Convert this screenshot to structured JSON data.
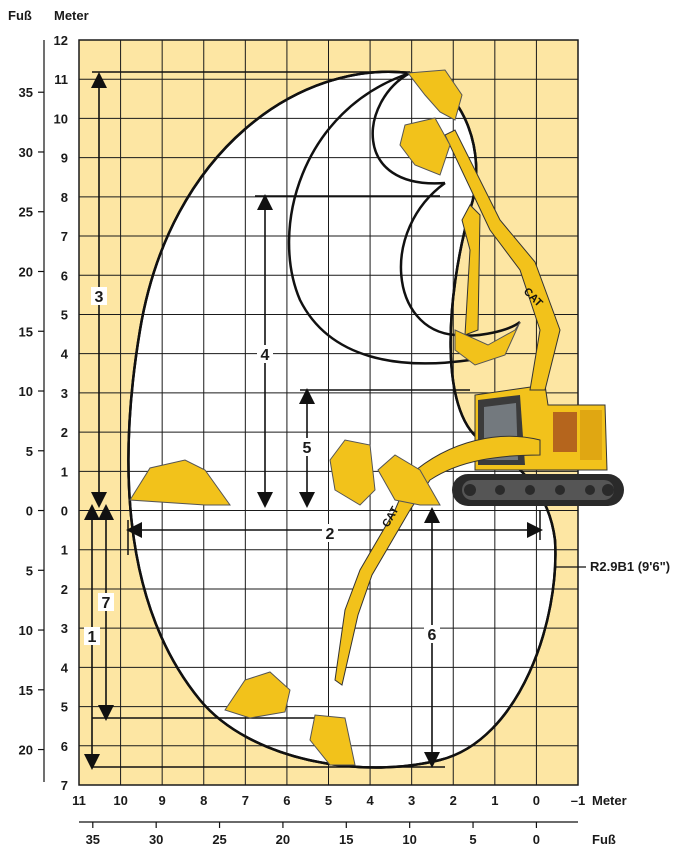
{
  "header": {
    "feet_unit": "Fuß",
    "meter_unit": "Meter"
  },
  "axes": {
    "y_meter_ticks": [
      "12",
      "11",
      "10",
      "9",
      "8",
      "7",
      "6",
      "5",
      "4",
      "3",
      "2",
      "1",
      "0",
      "1",
      "2",
      "3",
      "4",
      "5",
      "6",
      "7"
    ],
    "y_feet_ticks": [
      "35",
      "30",
      "25",
      "20",
      "15",
      "10",
      "5",
      "0",
      "5",
      "10",
      "15",
      "20"
    ],
    "x_meter_ticks": [
      "11",
      "10",
      "9",
      "8",
      "7",
      "6",
      "5",
      "4",
      "3",
      "2",
      "1",
      "0",
      "–1"
    ],
    "x_feet_ticks": [
      "35",
      "30",
      "25",
      "20",
      "15",
      "10",
      "5",
      "0"
    ],
    "x_meter_unit": "Meter",
    "x_feet_unit": "Fuß"
  },
  "dimension_labels": [
    "1",
    "2",
    "3",
    "4",
    "5",
    "6",
    "7"
  ],
  "boom_label": "R2.9B1 (9'6\")",
  "colors": {
    "background": "#fde6a3",
    "grid": "#1a1a1a",
    "machine_yellow": "#f2c21b",
    "machine_dark": "#2a2a2a"
  },
  "icons": [
    "excavator-icon",
    "bucket-icon"
  ]
}
